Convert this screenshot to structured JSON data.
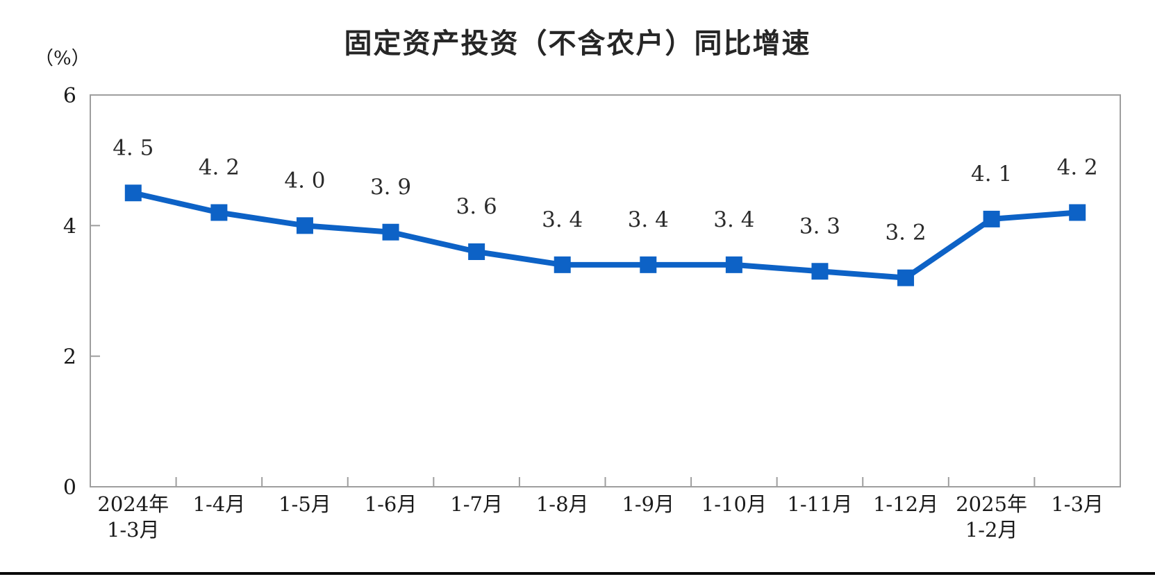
{
  "page": {
    "title": "固定资产投资（不含农户）同比增速",
    "unit_label": "（%）"
  },
  "chart_data": {
    "type": "line",
    "title": "固定资产投资（不含农户）同比增速",
    "ylabel": "（%）",
    "categories": [
      [
        "2024年",
        "1-3月"
      ],
      [
        "1-4月"
      ],
      [
        "1-5月"
      ],
      [
        "1-6月"
      ],
      [
        "1-7月"
      ],
      [
        "1-8月"
      ],
      [
        "1-9月"
      ],
      [
        "1-10月"
      ],
      [
        "1-11月"
      ],
      [
        "1-12月"
      ],
      [
        "2025年",
        "1-2月"
      ],
      [
        "1-3月"
      ]
    ],
    "values": [
      4.5,
      4.2,
      4.0,
      3.9,
      3.6,
      3.4,
      3.4,
      3.4,
      3.3,
      3.2,
      4.1,
      4.2
    ],
    "ylim": [
      0,
      6
    ],
    "yticks": [
      0,
      2,
      4,
      6
    ],
    "grid": false,
    "legend": "none",
    "data_labels": true,
    "marker": "square",
    "colors": {
      "line": "#0d62c6",
      "marker": "#0d62c6",
      "axis": "#9e9e9e",
      "text": "#1a1a1a",
      "data_label": "#2b2b2b"
    }
  }
}
